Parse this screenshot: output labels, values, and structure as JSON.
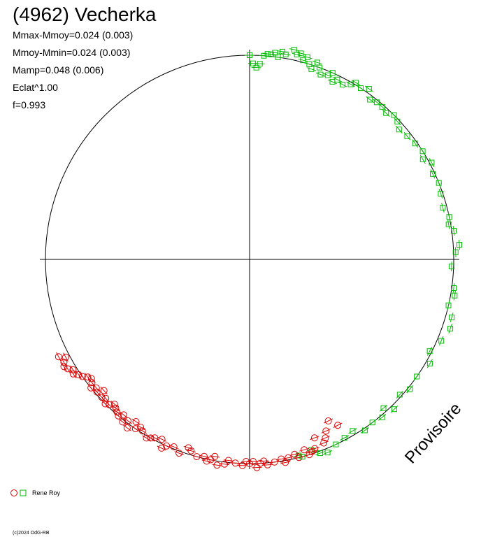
{
  "header": {
    "title": "(4962) Vecherka",
    "stats": [
      "Mmax-Mmoy=0.024 (0.003)",
      "Mmoy-Mmin=0.024 (0.003)",
      "Mamp=0.048 (0.006)",
      "Eclat^1.00",
      "f=0.993"
    ]
  },
  "legend": {
    "label": "Rene Roy"
  },
  "watermark": "Provisoire",
  "copyright": "(c)2024 OdG-RB",
  "colors": {
    "observer1": "#dd0000",
    "observer2": "#00bb00",
    "axes": "#000000"
  },
  "chart_data": {
    "type": "scatter",
    "projection": "polar",
    "angle_unit": "degrees clockwise from top",
    "radius_unit": "relative to reference circle (1.0)",
    "series": [
      {
        "marker": "square",
        "color": "#00bb00",
        "points": [
          [
            0,
            1.0
          ],
          [
            1,
            0.96
          ],
          [
            2,
            0.94
          ],
          [
            3,
            0.96
          ],
          [
            4,
            1.0
          ],
          [
            5,
            1.01
          ],
          [
            6,
            1.01
          ],
          [
            7,
            1.02
          ],
          [
            8,
            1.0
          ],
          [
            9,
            1.03
          ],
          [
            10,
            1.02
          ],
          [
            12,
            1.05
          ],
          [
            13,
            1.03
          ],
          [
            14,
            1.04
          ],
          [
            15,
            1.01
          ],
          [
            16,
            1.03
          ],
          [
            17,
            1.0
          ],
          [
            18,
            0.98
          ],
          [
            19,
            1.02
          ],
          [
            20,
            1.0
          ],
          [
            21,
            0.97
          ],
          [
            23,
            0.98
          ],
          [
            24,
            1.0
          ],
          [
            25,
            0.96
          ],
          [
            26,
            0.98
          ],
          [
            28,
            0.97
          ],
          [
            30,
            0.99
          ],
          [
            31,
            1.01
          ],
          [
            33,
            1.0
          ],
          [
            35,
            1.02
          ],
          [
            37,
            0.98
          ],
          [
            39,
            0.99
          ],
          [
            41,
            0.99
          ],
          [
            43,
            0.98
          ],
          [
            45,
            1.0
          ],
          [
            47,
            0.99
          ],
          [
            49,
            0.97
          ],
          [
            52,
            0.98
          ],
          [
            55,
            0.99
          ],
          [
            58,
            1.0
          ],
          [
            60,
            0.98
          ],
          [
            62,
            1.01
          ],
          [
            65,
            0.99
          ],
          [
            68,
            1.0
          ],
          [
            71,
            0.99
          ],
          [
            75,
            0.98
          ],
          [
            78,
            1.0
          ],
          [
            80,
            0.99
          ],
          [
            82,
            1.01
          ],
          [
            86,
            1.03
          ],
          [
            88,
            1.01
          ],
          [
            92,
            0.99
          ],
          [
            98,
            1.01
          ],
          [
            100,
            1.02
          ],
          [
            103,
            1.0
          ],
          [
            106,
            1.03
          ],
          [
            109,
            1.04
          ],
          [
            113,
            1.02
          ],
          [
            117,
            0.99
          ],
          [
            120,
            1.02
          ],
          [
            125,
            1.0
          ],
          [
            129,
            1.01
          ],
          [
            132,
            0.99
          ],
          [
            136,
            1.02
          ],
          [
            138,
            0.98
          ],
          [
            140,
            1.01
          ],
          [
            143,
            1.0
          ],
          [
            146,
            1.01
          ],
          [
            149,
            0.98
          ],
          [
            152,
            0.99
          ],
          [
            155,
            1.0
          ],
          [
            158,
            1.02
          ],
          [
            160,
            1.01
          ],
          [
            162,
            0.98
          ],
          [
            165,
            1.0
          ],
          [
            166,
            0.99
          ]
        ]
      },
      {
        "marker": "circle",
        "color": "#dd0000",
        "points": [
          [
            152,
            0.92
          ],
          [
            154,
            0.88
          ],
          [
            156,
            0.92
          ],
          [
            157,
            0.95
          ],
          [
            158,
            0.97
          ],
          [
            160,
            0.93
          ],
          [
            161,
            0.98
          ],
          [
            162,
            0.99
          ],
          [
            163,
            1.0
          ],
          [
            164,
            0.97
          ],
          [
            166,
            1.0
          ],
          [
            167,
            0.98
          ],
          [
            169,
            0.99
          ],
          [
            170,
            1.01
          ],
          [
            171,
            0.99
          ],
          [
            173,
            1.0
          ],
          [
            175,
            1.01
          ],
          [
            176,
            0.99
          ],
          [
            177,
            1.0
          ],
          [
            178,
            1.02
          ],
          [
            179,
            0.99
          ],
          [
            180,
            1.0
          ],
          [
            181,
            0.99
          ],
          [
            182,
            1.01
          ],
          [
            184,
            1.0
          ],
          [
            186,
            0.99
          ],
          [
            187,
            1.01
          ],
          [
            189,
            1.02
          ],
          [
            190,
            0.98
          ],
          [
            191,
            1.0
          ],
          [
            192,
            1.01
          ],
          [
            193,
            0.99
          ],
          [
            195,
            1.0
          ],
          [
            197,
            0.98
          ],
          [
            198,
            0.97
          ],
          [
            200,
            1.01
          ],
          [
            202,
            0.99
          ],
          [
            204,
            1.0
          ],
          [
            205,
            1.02
          ],
          [
            206,
            0.98
          ],
          [
            208,
            0.99
          ],
          [
            209,
            1.0
          ],
          [
            210,
            1.01
          ],
          [
            212,
            0.99
          ],
          [
            213,
            0.98
          ],
          [
            214,
            1.0
          ],
          [
            215,
            0.97
          ],
          [
            216,
            1.02
          ],
          [
            217,
            0.99
          ],
          [
            218,
            1.01
          ],
          [
            219,
            0.98
          ],
          [
            220,
            1.0
          ],
          [
            221,
            0.99
          ],
          [
            222,
            0.98
          ],
          [
            223,
            0.97
          ],
          [
            224,
            0.99
          ],
          [
            225,
            1.0
          ],
          [
            226,
            0.98
          ],
          [
            227,
            0.99
          ],
          [
            228,
            0.96
          ],
          [
            229,
            0.99
          ],
          [
            230,
            0.98
          ],
          [
            231,
            1.0
          ],
          [
            232,
            0.98
          ],
          [
            233,
            0.97
          ],
          [
            234,
            0.98
          ],
          [
            235,
            1.0
          ],
          [
            236,
            1.01
          ],
          [
            237,
            1.03
          ],
          [
            238,
            1.02
          ],
          [
            239,
            1.04
          ],
          [
            240,
            1.05
          ],
          [
            241,
            1.04
          ],
          [
            242,
            1.02
          ],
          [
            243,
            1.05
          ]
        ]
      }
    ]
  }
}
